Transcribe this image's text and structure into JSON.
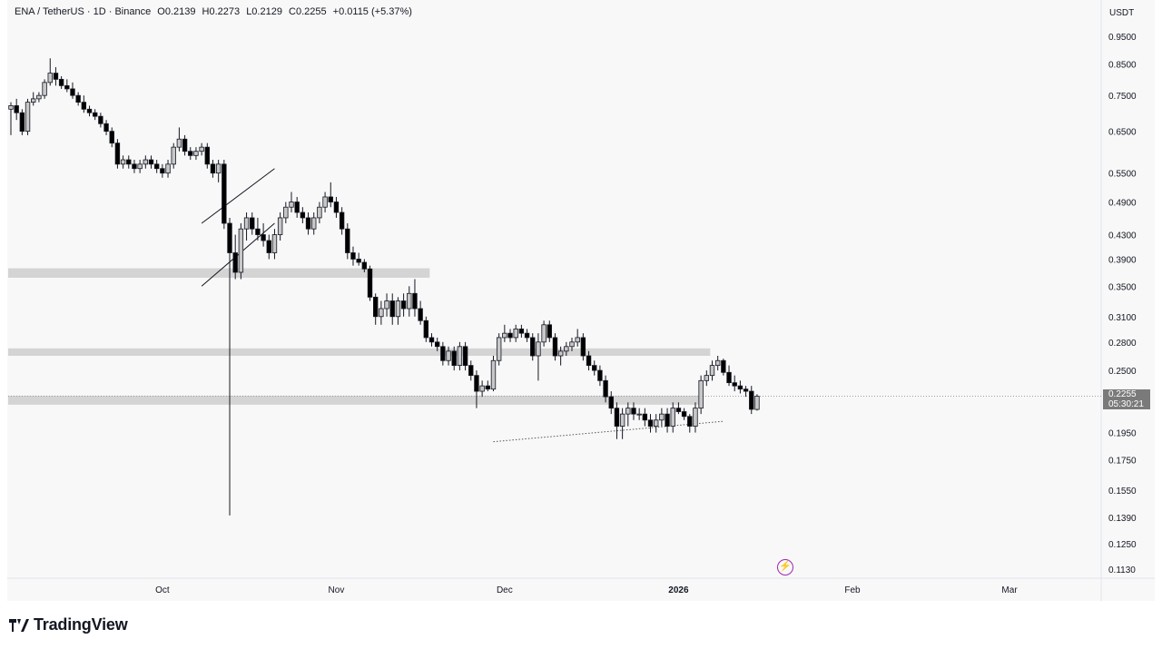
{
  "header": {
    "symbol": "ENA / TetherUS · 1D · Binance",
    "open": "O0.2139",
    "high": "H0.2273",
    "low": "L0.2129",
    "close": "C0.2255",
    "change": "+0.0115 (+5.37%)"
  },
  "price_unit": "USDT",
  "last_price": "0.2255",
  "countdown": "05:30:21",
  "brand": "TradingView",
  "colors": {
    "up": "#c8c8c8",
    "down": "#000000",
    "zone": "#d4d4d4",
    "alert": "#9c27b0"
  },
  "chart_data": {
    "type": "candlestick",
    "scale": "log",
    "ylim": [
      0.108,
      1.03
    ],
    "y_ticks": [
      "0.9500",
      "0.8500",
      "0.7500",
      "0.6500",
      "0.5500",
      "0.4900",
      "0.4300",
      "0.3900",
      "0.3500",
      "0.3100",
      "0.2800",
      "0.2500",
      "0.2255",
      "0.1950",
      "0.1750",
      "0.1550",
      "0.1390",
      "0.1250",
      "0.1130"
    ],
    "x_ticks": [
      {
        "label": "Oct",
        "date": "2025-10-01"
      },
      {
        "label": "Nov",
        "date": "2025-11-01"
      },
      {
        "label": "Dec",
        "date": "2025-12-01"
      },
      {
        "label": "2026",
        "date": "2026-01-01",
        "bold": true
      },
      {
        "label": "Feb",
        "date": "2026-02-01"
      },
      {
        "label": "Mar",
        "date": "2026-03-01"
      }
    ],
    "first_date": "2025-09-04",
    "candles": [
      [
        0.71,
        0.73,
        0.64,
        0.72
      ],
      [
        0.72,
        0.74,
        0.68,
        0.7
      ],
      [
        0.7,
        0.71,
        0.64,
        0.65
      ],
      [
        0.65,
        0.74,
        0.64,
        0.73
      ],
      [
        0.73,
        0.76,
        0.72,
        0.74
      ],
      [
        0.74,
        0.76,
        0.73,
        0.75
      ],
      [
        0.75,
        0.8,
        0.74,
        0.79
      ],
      [
        0.79,
        0.87,
        0.78,
        0.82
      ],
      [
        0.82,
        0.84,
        0.78,
        0.8
      ],
      [
        0.8,
        0.81,
        0.77,
        0.78
      ],
      [
        0.78,
        0.8,
        0.76,
        0.77
      ],
      [
        0.77,
        0.79,
        0.74,
        0.75
      ],
      [
        0.75,
        0.76,
        0.72,
        0.73
      ],
      [
        0.73,
        0.75,
        0.7,
        0.71
      ],
      [
        0.71,
        0.72,
        0.69,
        0.7
      ],
      [
        0.7,
        0.71,
        0.68,
        0.69
      ],
      [
        0.69,
        0.7,
        0.66,
        0.67
      ],
      [
        0.67,
        0.68,
        0.64,
        0.65
      ],
      [
        0.65,
        0.66,
        0.61,
        0.62
      ],
      [
        0.62,
        0.63,
        0.56,
        0.57
      ],
      [
        0.57,
        0.59,
        0.56,
        0.58
      ],
      [
        0.58,
        0.59,
        0.56,
        0.57
      ],
      [
        0.57,
        0.58,
        0.55,
        0.56
      ],
      [
        0.56,
        0.58,
        0.55,
        0.57
      ],
      [
        0.57,
        0.59,
        0.56,
        0.58
      ],
      [
        0.58,
        0.59,
        0.56,
        0.57
      ],
      [
        0.57,
        0.58,
        0.55,
        0.56
      ],
      [
        0.56,
        0.57,
        0.54,
        0.55
      ],
      [
        0.55,
        0.58,
        0.54,
        0.57
      ],
      [
        0.57,
        0.62,
        0.56,
        0.61
      ],
      [
        0.61,
        0.66,
        0.6,
        0.63
      ],
      [
        0.63,
        0.64,
        0.59,
        0.6
      ],
      [
        0.6,
        0.61,
        0.58,
        0.59
      ],
      [
        0.59,
        0.61,
        0.58,
        0.6
      ],
      [
        0.6,
        0.62,
        0.59,
        0.61
      ],
      [
        0.61,
        0.62,
        0.56,
        0.57
      ],
      [
        0.57,
        0.58,
        0.54,
        0.55
      ],
      [
        0.55,
        0.58,
        0.53,
        0.57
      ],
      [
        0.57,
        0.58,
        0.44,
        0.45
      ],
      [
        0.45,
        0.46,
        0.14,
        0.4
      ],
      [
        0.4,
        0.43,
        0.36,
        0.37
      ],
      [
        0.37,
        0.45,
        0.36,
        0.44
      ],
      [
        0.44,
        0.47,
        0.42,
        0.46
      ],
      [
        0.46,
        0.47,
        0.43,
        0.44
      ],
      [
        0.44,
        0.46,
        0.42,
        0.43
      ],
      [
        0.43,
        0.45,
        0.41,
        0.42
      ],
      [
        0.42,
        0.43,
        0.39,
        0.4
      ],
      [
        0.4,
        0.44,
        0.39,
        0.43
      ],
      [
        0.43,
        0.47,
        0.42,
        0.46
      ],
      [
        0.46,
        0.49,
        0.45,
        0.48
      ],
      [
        0.48,
        0.51,
        0.47,
        0.49
      ],
      [
        0.49,
        0.5,
        0.46,
        0.47
      ],
      [
        0.47,
        0.48,
        0.45,
        0.46
      ],
      [
        0.46,
        0.47,
        0.43,
        0.44
      ],
      [
        0.44,
        0.47,
        0.43,
        0.46
      ],
      [
        0.46,
        0.49,
        0.45,
        0.48
      ],
      [
        0.48,
        0.51,
        0.47,
        0.5
      ],
      [
        0.5,
        0.53,
        0.48,
        0.49
      ],
      [
        0.49,
        0.5,
        0.46,
        0.47
      ],
      [
        0.47,
        0.48,
        0.43,
        0.44
      ],
      [
        0.44,
        0.45,
        0.39,
        0.4
      ],
      [
        0.4,
        0.41,
        0.38,
        0.39
      ],
      [
        0.39,
        0.4,
        0.38,
        0.385
      ],
      [
        0.385,
        0.39,
        0.37,
        0.375
      ],
      [
        0.375,
        0.38,
        0.33,
        0.335
      ],
      [
        0.335,
        0.34,
        0.3,
        0.31
      ],
      [
        0.31,
        0.33,
        0.3,
        0.32
      ],
      [
        0.32,
        0.34,
        0.31,
        0.33
      ],
      [
        0.33,
        0.34,
        0.3,
        0.31
      ],
      [
        0.31,
        0.335,
        0.3,
        0.33
      ],
      [
        0.33,
        0.34,
        0.31,
        0.32
      ],
      [
        0.32,
        0.35,
        0.31,
        0.34
      ],
      [
        0.34,
        0.36,
        0.31,
        0.32
      ],
      [
        0.32,
        0.33,
        0.3,
        0.305
      ],
      [
        0.305,
        0.31,
        0.28,
        0.285
      ],
      [
        0.285,
        0.29,
        0.275,
        0.28
      ],
      [
        0.28,
        0.285,
        0.27,
        0.275
      ],
      [
        0.275,
        0.28,
        0.255,
        0.26
      ],
      [
        0.26,
        0.275,
        0.255,
        0.27
      ],
      [
        0.27,
        0.275,
        0.25,
        0.255
      ],
      [
        0.255,
        0.28,
        0.25,
        0.275
      ],
      [
        0.275,
        0.28,
        0.25,
        0.255
      ],
      [
        0.255,
        0.26,
        0.24,
        0.245
      ],
      [
        0.245,
        0.25,
        0.215,
        0.23
      ],
      [
        0.23,
        0.24,
        0.225,
        0.235
      ],
      [
        0.235,
        0.24,
        0.23,
        0.232
      ],
      [
        0.232,
        0.265,
        0.23,
        0.26
      ],
      [
        0.26,
        0.29,
        0.255,
        0.285
      ],
      [
        0.285,
        0.3,
        0.28,
        0.29
      ],
      [
        0.29,
        0.295,
        0.28,
        0.285
      ],
      [
        0.285,
        0.3,
        0.28,
        0.295
      ],
      [
        0.295,
        0.3,
        0.285,
        0.29
      ],
      [
        0.29,
        0.295,
        0.28,
        0.285
      ],
      [
        0.285,
        0.29,
        0.26,
        0.265
      ],
      [
        0.265,
        0.29,
        0.24,
        0.28
      ],
      [
        0.28,
        0.305,
        0.275,
        0.3
      ],
      [
        0.3,
        0.305,
        0.28,
        0.285
      ],
      [
        0.285,
        0.29,
        0.26,
        0.265
      ],
      [
        0.265,
        0.275,
        0.255,
        0.27
      ],
      [
        0.27,
        0.28,
        0.265,
        0.275
      ],
      [
        0.275,
        0.285,
        0.27,
        0.28
      ],
      [
        0.28,
        0.295,
        0.275,
        0.285
      ],
      [
        0.285,
        0.29,
        0.26,
        0.265
      ],
      [
        0.265,
        0.27,
        0.25,
        0.255
      ],
      [
        0.255,
        0.26,
        0.245,
        0.25
      ],
      [
        0.25,
        0.255,
        0.235,
        0.24
      ],
      [
        0.24,
        0.245,
        0.22,
        0.225
      ],
      [
        0.225,
        0.23,
        0.21,
        0.215
      ],
      [
        0.215,
        0.22,
        0.19,
        0.2
      ],
      [
        0.2,
        0.215,
        0.19,
        0.21
      ],
      [
        0.21,
        0.22,
        0.2,
        0.215
      ],
      [
        0.215,
        0.22,
        0.205,
        0.21
      ],
      [
        0.21,
        0.215,
        0.205,
        0.21
      ],
      [
        0.21,
        0.215,
        0.2,
        0.205
      ],
      [
        0.205,
        0.21,
        0.195,
        0.2
      ],
      [
        0.2,
        0.21,
        0.195,
        0.205
      ],
      [
        0.205,
        0.215,
        0.2,
        0.21
      ],
      [
        0.21,
        0.215,
        0.195,
        0.2
      ],
      [
        0.2,
        0.22,
        0.195,
        0.215
      ],
      [
        0.215,
        0.22,
        0.21,
        0.212
      ],
      [
        0.212,
        0.215,
        0.205,
        0.208
      ],
      [
        0.208,
        0.21,
        0.195,
        0.2
      ],
      [
        0.2,
        0.22,
        0.195,
        0.215
      ],
      [
        0.215,
        0.245,
        0.21,
        0.24
      ],
      [
        0.24,
        0.25,
        0.235,
        0.245
      ],
      [
        0.245,
        0.26,
        0.24,
        0.255
      ],
      [
        0.255,
        0.265,
        0.25,
        0.26
      ],
      [
        0.26,
        0.262,
        0.245,
        0.248
      ],
      [
        0.248,
        0.255,
        0.235,
        0.238
      ],
      [
        0.238,
        0.245,
        0.23,
        0.235
      ],
      [
        0.235,
        0.24,
        0.228,
        0.232
      ],
      [
        0.232,
        0.235,
        0.225,
        0.23
      ],
      [
        0.23,
        0.235,
        0.21,
        0.214
      ],
      [
        0.2139,
        0.2273,
        0.2129,
        0.2255
      ]
    ],
    "zones": [
      {
        "from_candle": 0,
        "to_candle": 74,
        "low": 0.362,
        "high": 0.376
      },
      {
        "from_candle": 0,
        "to_candle": 124,
        "low": 0.265,
        "high": 0.273
      },
      {
        "from_candle": 0,
        "to_candle": 122,
        "low": 0.218,
        "high": 0.226
      }
    ],
    "channel": {
      "upper": [
        [
          34,
          0.45
        ],
        [
          47,
          0.56
        ]
      ],
      "lower": [
        [
          34,
          0.35
        ],
        [
          47,
          0.45
        ]
      ]
    },
    "trendline": {
      "points": [
        [
          86,
          0.188
        ],
        [
          127,
          0.204
        ]
      ],
      "style": "dotted"
    }
  }
}
